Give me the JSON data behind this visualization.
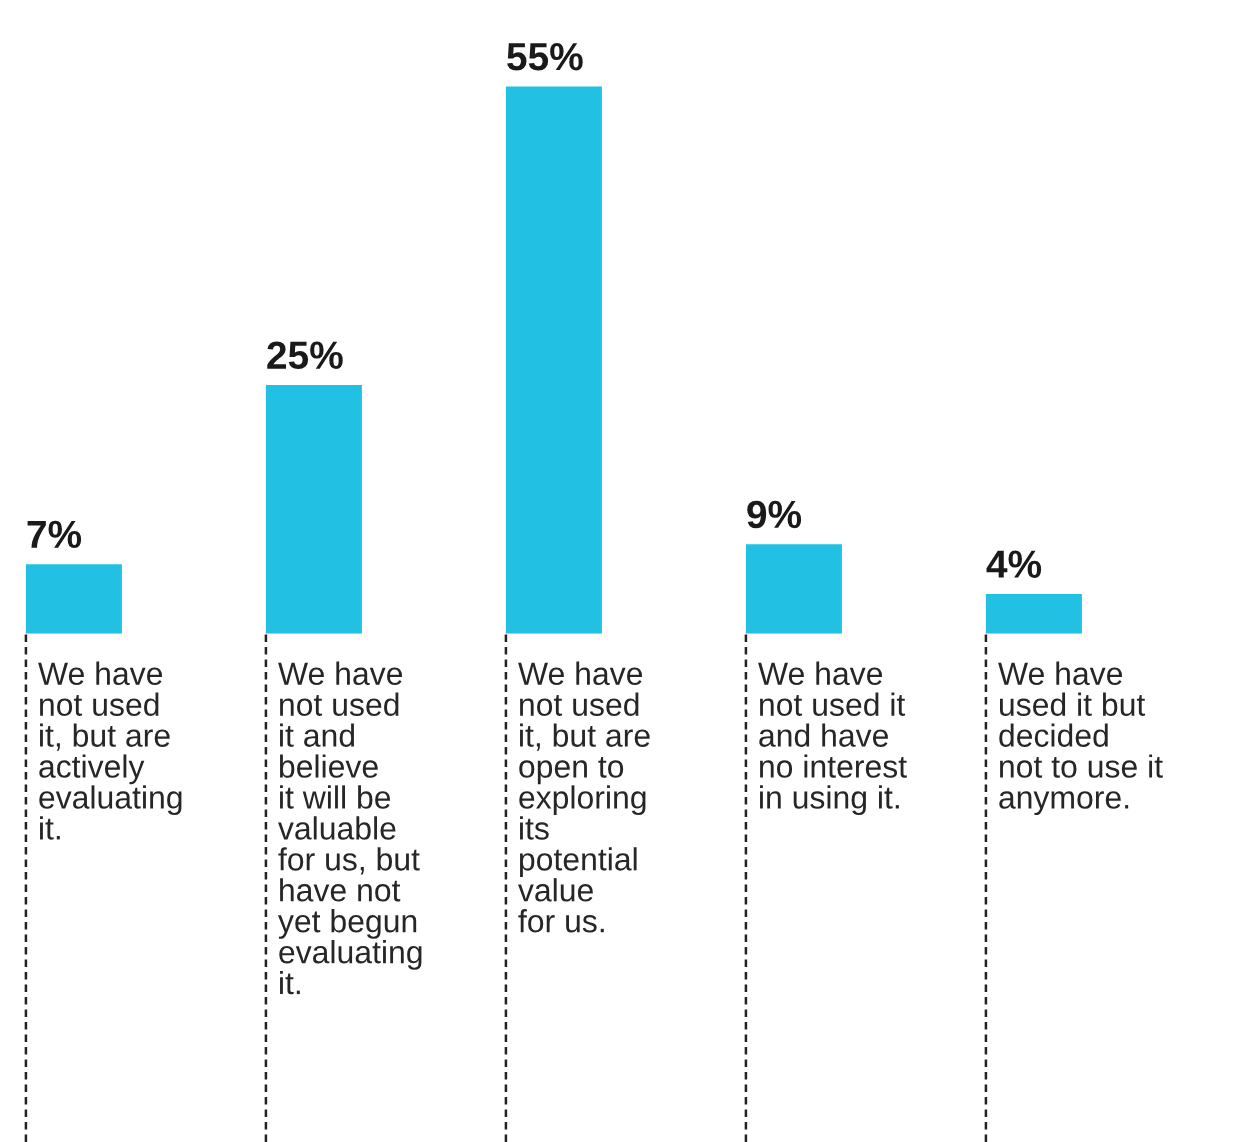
{
  "chart_data": {
    "type": "bar",
    "categories": [
      "We have\nnot used\nit, but are\nactively\nevaluating\nit.",
      "We have\nnot used\nit and\nbelieve\nit will be\nvaluable\nfor us, but\nhave not\nyet begun\nevaluating\nit.",
      "We have\nnot used\nit, but are\nopen to\nexploring\nits\npotential\nvalue\nfor us.",
      "We have\nnot used it\nand have\nno interest\nin using it.",
      "We have\nused it but\ndecided\nnot to use it\nanymore."
    ],
    "values": [
      7,
      25,
      55,
      9,
      4
    ],
    "value_labels": [
      "7%",
      "25%",
      "55%",
      "9%",
      "4%"
    ],
    "color": "#22c0e2"
  }
}
